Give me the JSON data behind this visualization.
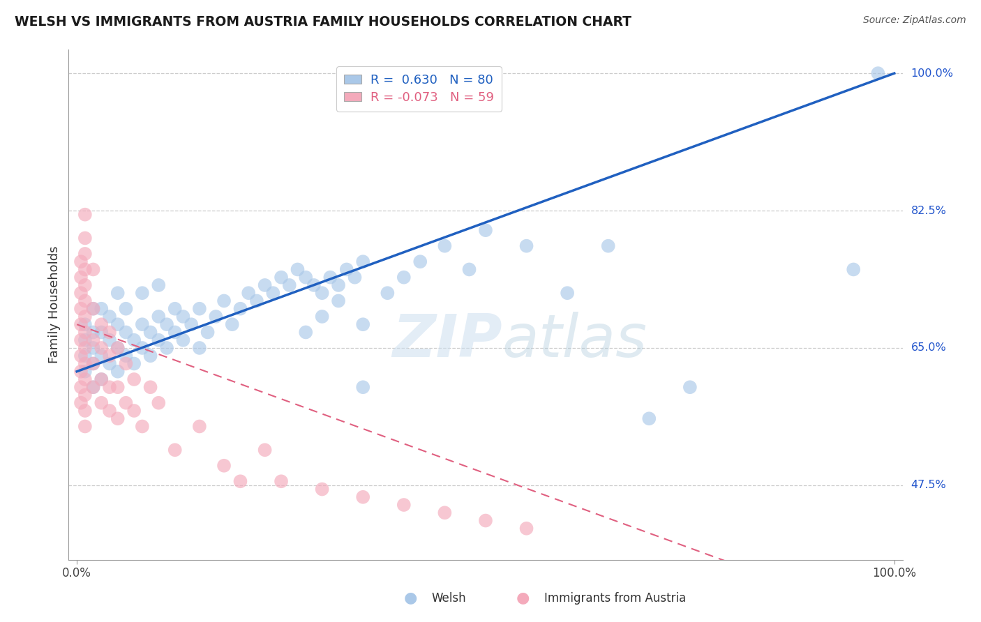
{
  "title": "WELSH VS IMMIGRANTS FROM AUSTRIA FAMILY HOUSEHOLDS CORRELATION CHART",
  "source": "Source: ZipAtlas.com",
  "ylabel": "Family Households",
  "watermark_zip": "ZIP",
  "watermark_atlas": "atlas",
  "xlim": [
    -1,
    101
  ],
  "ylim": [
    38,
    103
  ],
  "ytick_values": [
    47.5,
    65.0,
    82.5,
    100.0
  ],
  "ytick_labels": [
    "47.5%",
    "65.0%",
    "82.5%",
    "100.0%"
  ],
  "xtick_values": [
    0,
    100
  ],
  "xtick_labels": [
    "0.0%",
    "100.0%"
  ],
  "legend_welsh_label": "R =  0.630   N = 80",
  "legend_austria_label": "R = -0.073   N = 59",
  "welsh_color": "#aac8e8",
  "austria_color": "#f4aabb",
  "welsh_line_color": "#2060c0",
  "austria_line_color": "#e06080",
  "bottom_legend_welsh": "Welsh",
  "bottom_legend_austria": "Immigrants from Austria",
  "welsh_x": [
    1,
    1,
    1,
    1,
    2,
    2,
    2,
    2,
    2,
    3,
    3,
    3,
    3,
    4,
    4,
    4,
    5,
    5,
    5,
    5,
    6,
    6,
    6,
    7,
    7,
    8,
    8,
    8,
    9,
    9,
    10,
    10,
    10,
    11,
    11,
    12,
    12,
    13,
    13,
    14,
    15,
    15,
    16,
    17,
    18,
    19,
    20,
    21,
    22,
    23,
    24,
    25,
    26,
    27,
    28,
    29,
    30,
    31,
    32,
    33,
    34,
    35,
    28,
    30,
    32,
    35,
    38,
    40,
    42,
    35,
    45,
    48,
    50,
    55,
    60,
    65,
    70,
    75,
    95,
    98
  ],
  "welsh_y": [
    62,
    64,
    66,
    68,
    60,
    63,
    65,
    67,
    70,
    61,
    64,
    67,
    70,
    63,
    66,
    69,
    62,
    65,
    68,
    72,
    64,
    67,
    70,
    63,
    66,
    65,
    68,
    72,
    64,
    67,
    66,
    69,
    73,
    65,
    68,
    67,
    70,
    66,
    69,
    68,
    65,
    70,
    67,
    69,
    71,
    68,
    70,
    72,
    71,
    73,
    72,
    74,
    73,
    75,
    74,
    73,
    72,
    74,
    73,
    75,
    74,
    76,
    67,
    69,
    71,
    68,
    72,
    74,
    76,
    60,
    78,
    75,
    80,
    78,
    72,
    78,
    56,
    60,
    75,
    100
  ],
  "austria_x": [
    0.5,
    0.5,
    0.5,
    0.5,
    0.5,
    0.5,
    0.5,
    0.5,
    0.5,
    0.5,
    1,
    1,
    1,
    1,
    1,
    1,
    1,
    1,
    1,
    1,
    1,
    1,
    1,
    1,
    2,
    2,
    2,
    2,
    2,
    3,
    3,
    3,
    3,
    4,
    4,
    4,
    4,
    5,
    5,
    5,
    6,
    6,
    7,
    7,
    8,
    9,
    10,
    12,
    15,
    18,
    20,
    23,
    25,
    30,
    35,
    40,
    45,
    50,
    55
  ],
  "austria_y": [
    58,
    60,
    62,
    64,
    66,
    68,
    70,
    72,
    74,
    76,
    55,
    57,
    59,
    61,
    63,
    65,
    67,
    69,
    71,
    73,
    75,
    77,
    79,
    82,
    60,
    63,
    66,
    70,
    75,
    58,
    61,
    65,
    68,
    57,
    60,
    64,
    67,
    56,
    60,
    65,
    58,
    63,
    57,
    61,
    55,
    60,
    58,
    52,
    55,
    50,
    48,
    52,
    48,
    47,
    46,
    45,
    44,
    43,
    42
  ]
}
